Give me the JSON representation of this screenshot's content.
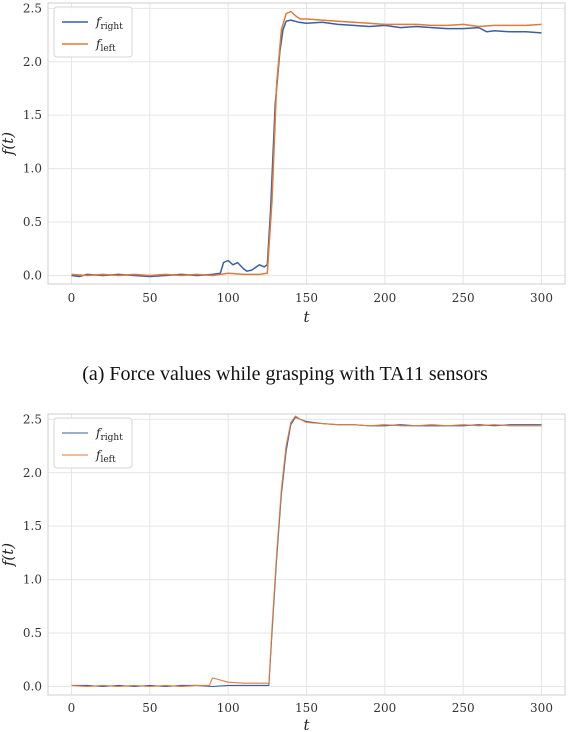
{
  "colors": {
    "right": "#3a5fa6",
    "left": "#e07b39",
    "grid": "#e6e6e6",
    "frame": "#cfcfcf"
  },
  "captions": {
    "a": "(a) Force values while grasping with TA11 sensors"
  },
  "chart_data": [
    {
      "type": "line",
      "xlabel": "t",
      "ylabel": "f(t)",
      "xlim": [
        -15,
        315
      ],
      "ylim": [
        -0.08,
        2.55
      ],
      "xticks": [
        0,
        50,
        100,
        150,
        200,
        250,
        300
      ],
      "yticks": [
        0.0,
        0.5,
        1.0,
        1.5,
        2.0,
        2.5
      ],
      "ytick_labels": [
        "0.0",
        "0.5",
        "1.0",
        "1.5",
        "2.0",
        "2.5"
      ],
      "grid": true,
      "legend": "top-left",
      "series": [
        {
          "name": "f_right",
          "label_main": "f",
          "label_sub": "right",
          "color": "#3a5fa6",
          "x": [
            0,
            5,
            10,
            20,
            30,
            40,
            50,
            60,
            70,
            80,
            90,
            95,
            97,
            100,
            103,
            106,
            110,
            112,
            115,
            118,
            120,
            123,
            125,
            127,
            130,
            133,
            135,
            137,
            140,
            145,
            150,
            160,
            170,
            180,
            190,
            200,
            210,
            220,
            230,
            240,
            250,
            260,
            265,
            270,
            280,
            290,
            300
          ],
          "y": [
            0.0,
            -0.01,
            0.01,
            0.0,
            0.01,
            0.0,
            -0.01,
            0.0,
            0.01,
            0.0,
            0.01,
            0.02,
            0.12,
            0.14,
            0.1,
            0.12,
            0.06,
            0.04,
            0.05,
            0.08,
            0.1,
            0.08,
            0.1,
            0.6,
            1.6,
            2.1,
            2.3,
            2.38,
            2.39,
            2.37,
            2.36,
            2.37,
            2.35,
            2.34,
            2.33,
            2.34,
            2.32,
            2.33,
            2.32,
            2.31,
            2.31,
            2.32,
            2.28,
            2.29,
            2.28,
            2.28,
            2.27
          ]
        },
        {
          "name": "f_left",
          "label_main": "f",
          "label_sub": "left",
          "color": "#e07b39",
          "x": [
            0,
            10,
            20,
            30,
            40,
            50,
            60,
            70,
            80,
            90,
            100,
            110,
            120,
            125,
            128,
            131,
            134,
            137,
            140,
            143,
            146,
            150,
            160,
            170,
            180,
            190,
            200,
            210,
            220,
            230,
            240,
            250,
            260,
            270,
            280,
            290,
            300
          ],
          "y": [
            0.01,
            0.0,
            0.01,
            0.0,
            0.01,
            0.0,
            0.01,
            0.0,
            0.01,
            0.0,
            0.02,
            0.01,
            0.01,
            0.02,
            0.7,
            1.8,
            2.3,
            2.45,
            2.47,
            2.43,
            2.4,
            2.4,
            2.39,
            2.38,
            2.37,
            2.36,
            2.35,
            2.35,
            2.35,
            2.34,
            2.34,
            2.35,
            2.33,
            2.34,
            2.34,
            2.34,
            2.35
          ]
        }
      ]
    },
    {
      "type": "line",
      "xlabel": "t",
      "ylabel": "f(t)",
      "xlim": [
        -15,
        315
      ],
      "ylim": [
        -0.08,
        2.55
      ],
      "xticks": [
        0,
        50,
        100,
        150,
        200,
        250,
        300
      ],
      "yticks": [
        0.0,
        0.5,
        1.0,
        1.5,
        2.0,
        2.5
      ],
      "ytick_labels": [
        "0.0",
        "0.5",
        "1.0",
        "1.5",
        "2.0",
        "2.5"
      ],
      "grid": true,
      "legend": "top-left",
      "series": [
        {
          "name": "f_right",
          "label_main": "f",
          "label_sub": "right",
          "color": "#3a5fa6",
          "x": [
            0,
            10,
            20,
            30,
            40,
            50,
            60,
            70,
            80,
            90,
            100,
            110,
            120,
            126,
            128,
            131,
            134,
            137,
            140,
            143,
            146,
            150,
            160,
            170,
            180,
            190,
            200,
            210,
            220,
            230,
            240,
            250,
            260,
            270,
            280,
            290,
            300
          ],
          "y": [
            0.01,
            0.01,
            0.0,
            0.01,
            0.0,
            0.01,
            0.0,
            0.01,
            0.01,
            0.0,
            0.01,
            0.01,
            0.01,
            0.01,
            0.5,
            1.2,
            1.8,
            2.2,
            2.45,
            2.52,
            2.5,
            2.48,
            2.46,
            2.45,
            2.45,
            2.44,
            2.44,
            2.45,
            2.44,
            2.44,
            2.44,
            2.44,
            2.45,
            2.44,
            2.45,
            2.45,
            2.45
          ]
        },
        {
          "name": "f_left",
          "label_main": "f",
          "label_sub": "left",
          "color": "#e07b39",
          "x": [
            0,
            10,
            20,
            30,
            40,
            50,
            60,
            70,
            80,
            88,
            90,
            95,
            100,
            110,
            120,
            126,
            128,
            131,
            134,
            137,
            140,
            143,
            146,
            150,
            160,
            170,
            180,
            190,
            200,
            210,
            220,
            230,
            240,
            250,
            260,
            270,
            280,
            290,
            300
          ],
          "y": [
            0.01,
            0.0,
            0.01,
            0.0,
            0.01,
            0.0,
            0.01,
            0.0,
            0.01,
            0.01,
            0.08,
            0.06,
            0.04,
            0.03,
            0.03,
            0.03,
            0.55,
            1.25,
            1.85,
            2.25,
            2.47,
            2.53,
            2.5,
            2.47,
            2.46,
            2.45,
            2.45,
            2.44,
            2.45,
            2.44,
            2.44,
            2.45,
            2.44,
            2.45,
            2.44,
            2.45,
            2.44,
            2.44,
            2.44
          ]
        }
      ]
    }
  ]
}
